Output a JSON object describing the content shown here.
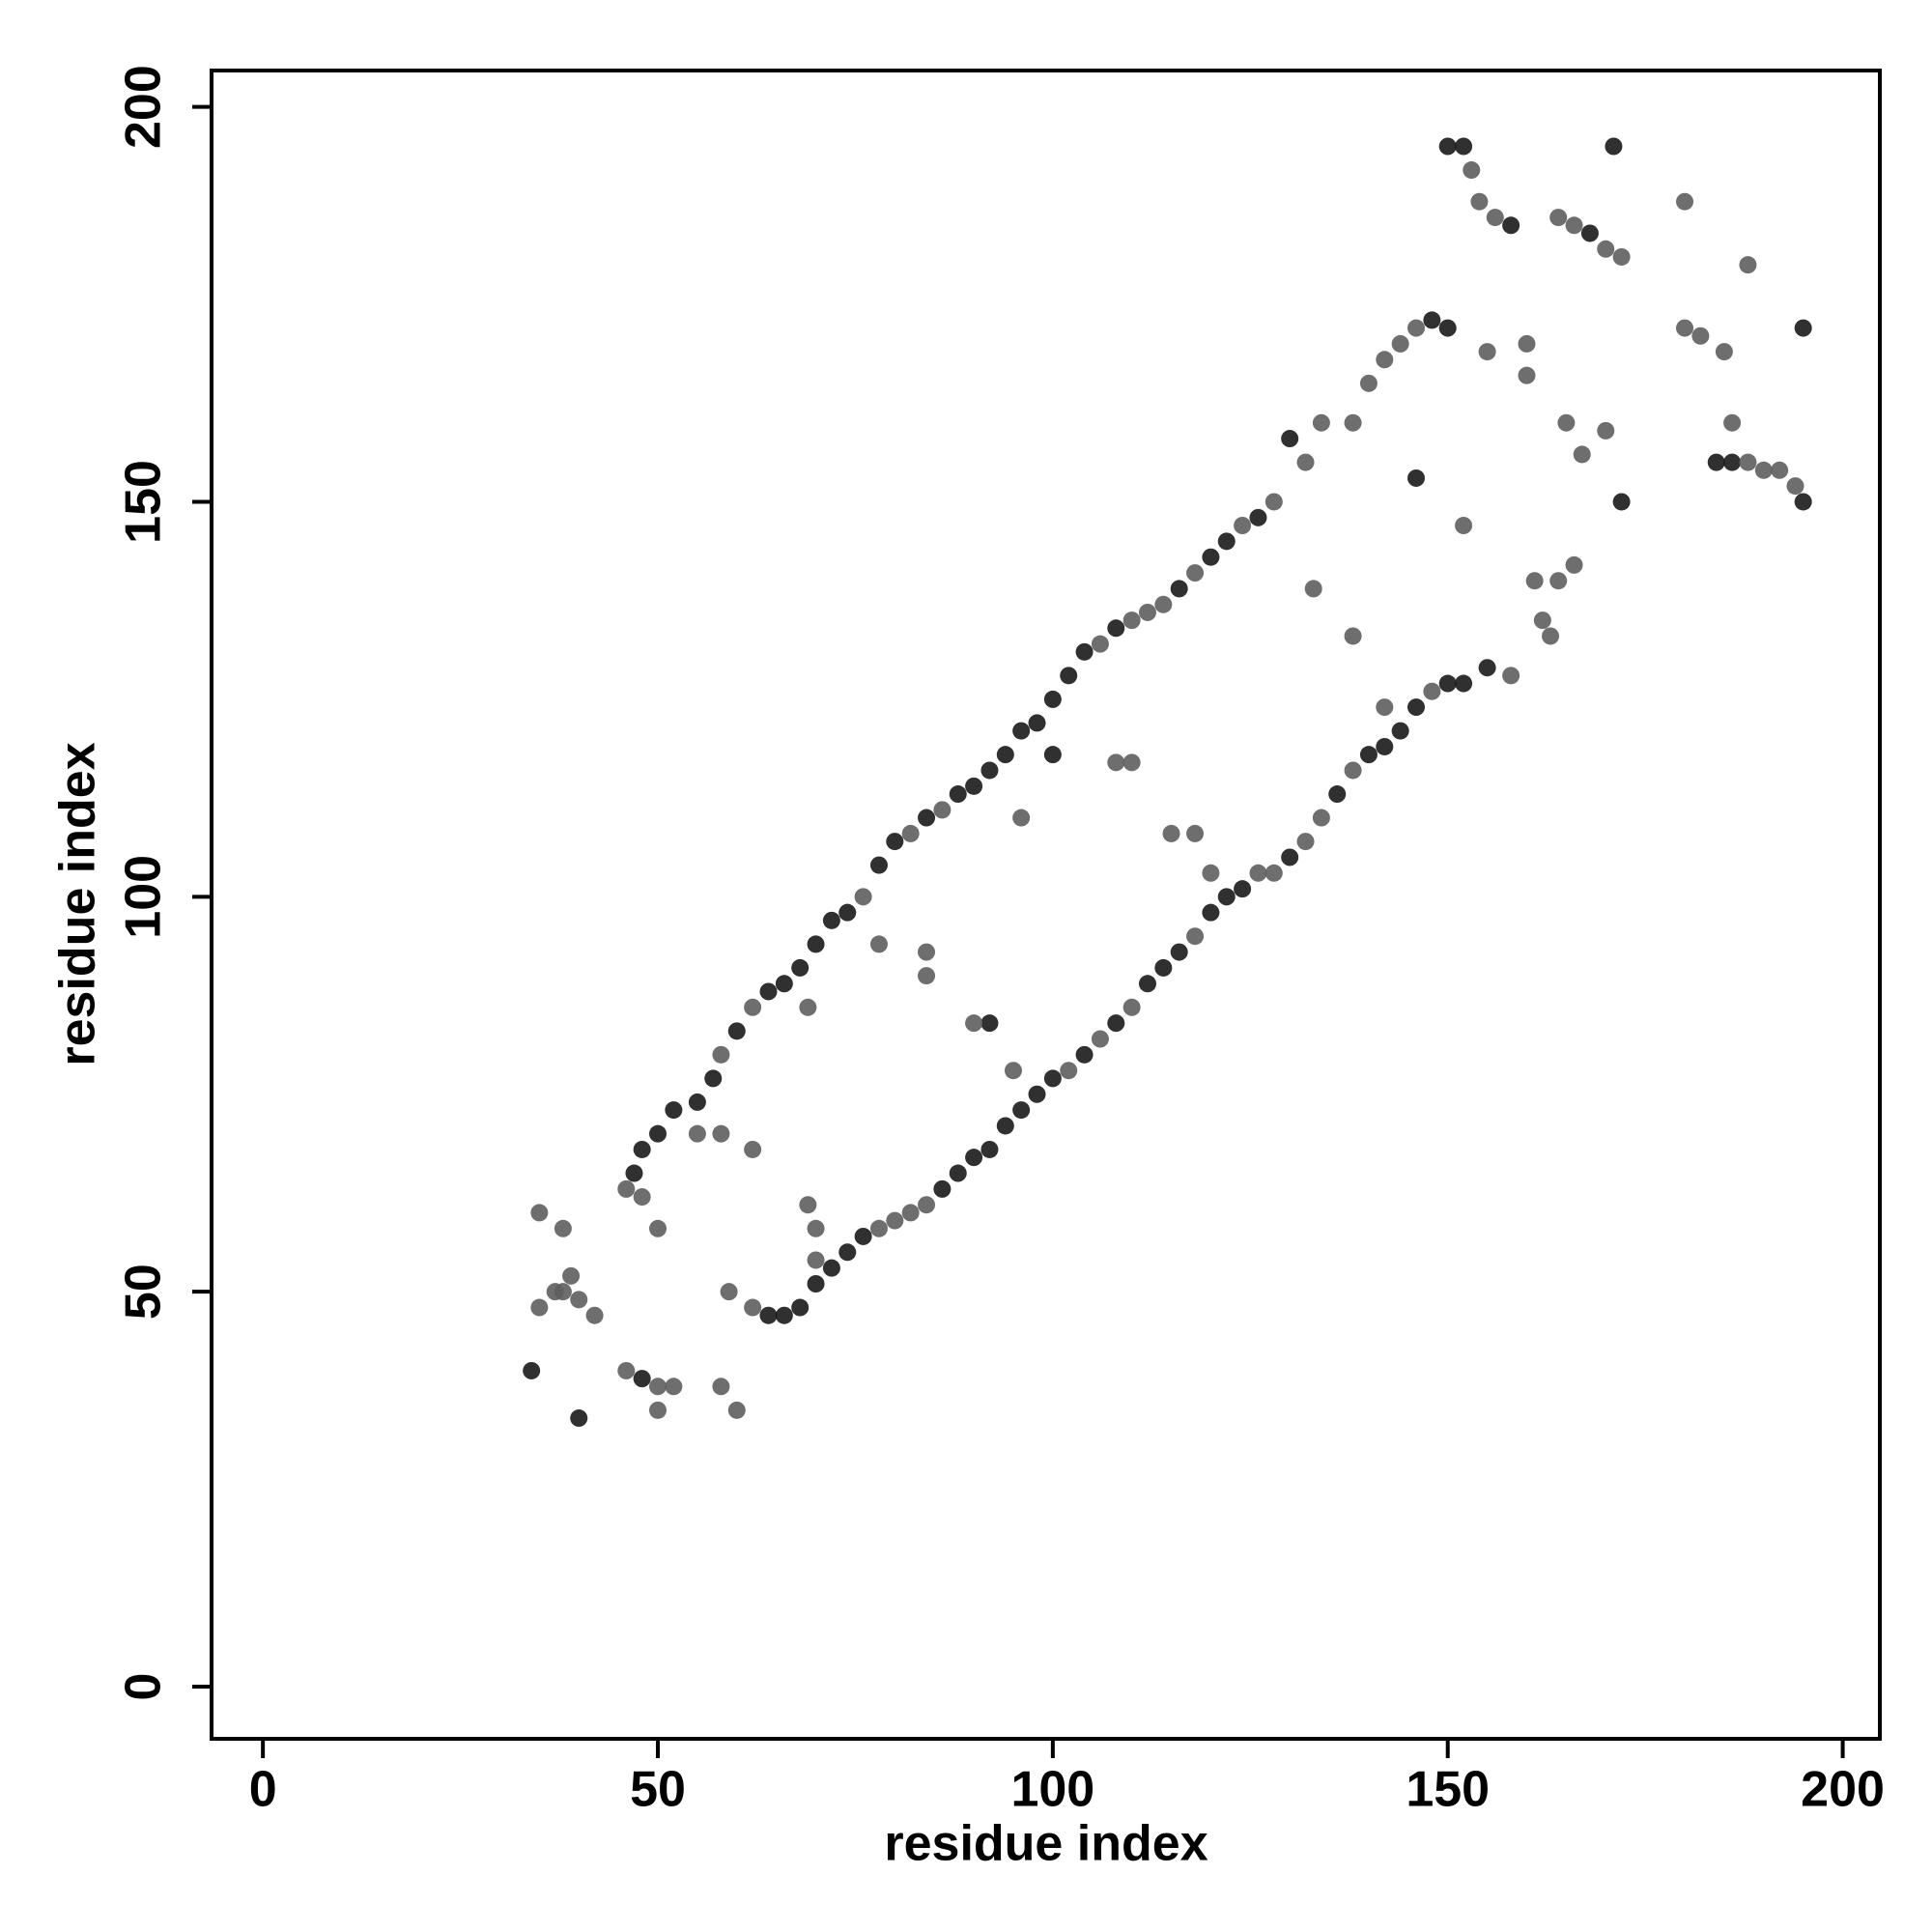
{
  "chart_data": {
    "type": "scatter",
    "x_label": "residue index",
    "y_label": "residue index",
    "xlim": [
      -6.5,
      204.7
    ],
    "ylim": [
      -6.6,
      204.6
    ],
    "xticks": [
      0,
      50,
      100,
      150,
      200
    ],
    "yticks": [
      0,
      50,
      100,
      150,
      200
    ],
    "series": [
      {
        "color": "#1a1a1a",
        "x": [
          47,
          48,
          50,
          52,
          55,
          57,
          60,
          64,
          66,
          68,
          70,
          72,
          74,
          78,
          80,
          84,
          88,
          90,
          92,
          94,
          96,
          98,
          100,
          102,
          104,
          108,
          116,
          120,
          122,
          126,
          130,
          148,
          150,
          64,
          66,
          68,
          70,
          72,
          74,
          76,
          86,
          88,
          90,
          92,
          94,
          96,
          98,
          100,
          104,
          108,
          112,
          114,
          116,
          120,
          122,
          124,
          130,
          136,
          140,
          142,
          144,
          146,
          150,
          152,
          155,
          172,
          150,
          152,
          158,
          168,
          171,
          184,
          186,
          195,
          34,
          40,
          48,
          146,
          92,
          100,
          195
        ],
        "y": [
          65,
          68,
          70,
          73,
          74,
          77,
          83,
          88,
          89,
          91,
          94,
          97,
          98,
          104,
          107,
          110,
          113,
          114,
          116,
          118,
          121,
          122,
          125,
          128,
          131,
          134,
          139,
          143,
          145,
          148,
          158,
          173,
          172,
          47,
          47,
          48,
          51,
          53,
          55,
          57,
          63,
          65,
          67,
          68,
          71,
          73,
          75,
          77,
          80,
          84,
          89,
          91,
          93,
          98,
          100,
          101,
          105,
          113,
          118,
          119,
          121,
          124,
          127,
          127,
          129,
          150,
          195,
          195,
          185,
          184,
          195,
          155,
          155,
          150,
          40,
          34,
          39,
          153,
          84,
          118,
          172
        ]
      },
      {
        "color": "#5e5e5e",
        "x": [
          58,
          62,
          76,
          82,
          86,
          106,
          110,
          112,
          114,
          118,
          124,
          128,
          132,
          134,
          138,
          140,
          142,
          144,
          146,
          78,
          80,
          82,
          84,
          102,
          106,
          110,
          118,
          126,
          128,
          132,
          134,
          138,
          148,
          153,
          154,
          156,
          164,
          166,
          170,
          172,
          180,
          188,
          180,
          182,
          185,
          186,
          188,
          190,
          192,
          194,
          35,
          37,
          38,
          39,
          40,
          42,
          35,
          38,
          46,
          50,
          52,
          50,
          58,
          60,
          46,
          48,
          50,
          55,
          58,
          62,
          59,
          62,
          69,
          70,
          70,
          69,
          78,
          84,
          84,
          90,
          95,
          108,
          110,
          115,
          118,
          120,
          96,
          133,
          138,
          142,
          152,
          155,
          160,
          160,
          161,
          163,
          158,
          165,
          167,
          170,
          162,
          164,
          166
        ],
        "y": [
          80,
          86,
          100,
          108,
          111,
          132,
          135,
          136,
          137,
          141,
          147,
          150,
          155,
          160,
          160,
          165,
          168,
          170,
          172,
          58,
          59,
          60,
          61,
          78,
          82,
          86,
          95,
          103,
          103,
          107,
          110,
          116,
          126,
          192,
          188,
          186,
          186,
          185,
          182,
          181,
          188,
          180,
          172,
          171,
          169,
          160,
          155,
          154,
          154,
          152,
          48,
          50,
          50,
          52,
          49,
          47,
          60,
          58,
          40,
          38,
          38,
          35,
          38,
          35,
          63,
          62,
          58,
          70,
          70,
          68,
          50,
          48,
          61,
          58,
          54,
          86,
          94,
          93,
          90,
          84,
          78,
          117,
          117,
          108,
          108,
          103,
          110,
          139,
          133,
          124,
          147,
          169,
          170,
          166,
          140,
          133,
          128,
          160,
          156,
          159,
          135,
          140,
          142
        ]
      }
    ]
  }
}
